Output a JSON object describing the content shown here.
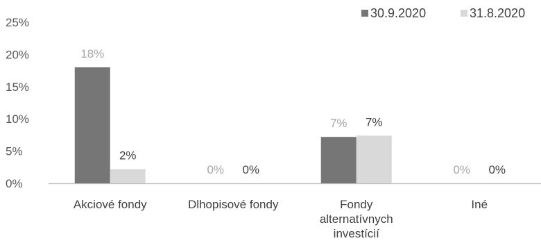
{
  "chart_data": {
    "type": "bar",
    "categories": [
      [
        "Akciové fondy"
      ],
      [
        "Dlhopisové fondy"
      ],
      [
        "Fondy",
        "alternatívnych",
        "investícií"
      ],
      [
        "Iné"
      ]
    ],
    "series": [
      {
        "name": "30.9.2020",
        "color": "#767676",
        "label_color": "#a6a6a6",
        "values": [
          18,
          0,
          7.2,
          0
        ],
        "labels": [
          "18%",
          "0%",
          "7%",
          "0%"
        ]
      },
      {
        "name": "31.8.2020",
        "color": "#d9d9d9",
        "label_color": "#404040",
        "values": [
          2.2,
          0,
          7.4,
          0
        ],
        "labels": [
          "2%",
          "0%",
          "7%",
          "0%"
        ]
      }
    ],
    "y_ticks": [
      "0%",
      "5%",
      "10%",
      "15%",
      "20%",
      "25%"
    ],
    "ylim": [
      0,
      25
    ],
    "legend_position": "top-right",
    "grid": false
  }
}
